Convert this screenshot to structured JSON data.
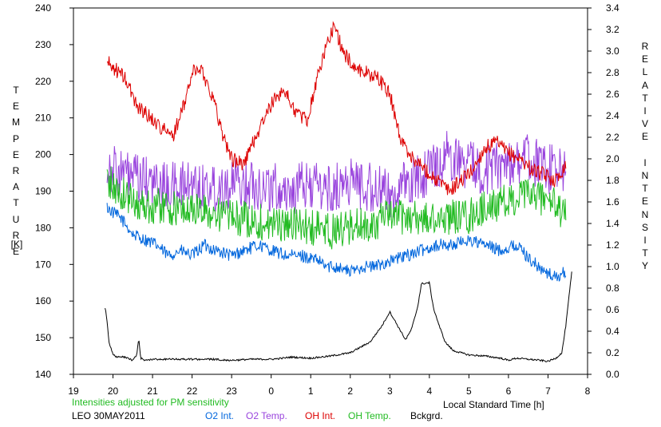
{
  "chart_data": {
    "type": "line",
    "left_axis": {
      "title_letters": [
        "T",
        "E",
        "M",
        "P",
        "E",
        "R",
        "A",
        "T",
        "U",
        "R",
        "E"
      ],
      "unit": "[K]",
      "range": [
        140,
        240
      ],
      "ticks": [
        "140",
        "150",
        "160",
        "170",
        "180",
        "190",
        "200",
        "210",
        "220",
        "230",
        "240"
      ]
    },
    "right_axis": {
      "title_letters": [
        "R",
        "E",
        "L",
        "A",
        "T",
        "I",
        "V",
        "E",
        " ",
        "I",
        "N",
        "T",
        "E",
        "N",
        "S",
        "I",
        "T",
        "Y"
      ],
      "range": [
        0.0,
        3.4
      ],
      "ticks": [
        "0.0",
        "0.2",
        "0.4",
        "0.6",
        "0.8",
        "1.0",
        "1.2",
        "1.4",
        "1.6",
        "1.8",
        "2.0",
        "2.2",
        "2.4",
        "2.6",
        "2.8",
        "3.0",
        "3.2",
        "3.4"
      ]
    },
    "x_axis": {
      "label": "Local Standard Time [h]",
      "range": [
        19,
        32
      ],
      "tick_labels": [
        "19",
        "20",
        "21",
        "22",
        "23",
        "0",
        "1",
        "2",
        "3",
        "4",
        "5",
        "6",
        "7",
        "8"
      ]
    },
    "note": "Intensities adjusted for PM sensitivity",
    "station": "LEO 30MAY2011",
    "series": [
      {
        "name": "O2 Int.",
        "axis": "right",
        "color": "#0066dd",
        "x": [
          19.85,
          20.0,
          20.2,
          20.5,
          20.8,
          21.1,
          21.4,
          21.7,
          22.0,
          22.3,
          22.6,
          23.0,
          23.3,
          23.7,
          24.0,
          24.4,
          24.8,
          25.2,
          25.4,
          25.7,
          26.0,
          26.3,
          26.6,
          27.0,
          27.4,
          27.8,
          28.2,
          28.6,
          29.0,
          29.4,
          29.8,
          30.2,
          30.6,
          30.9,
          31.2,
          31.45
        ],
        "values": [
          1.55,
          1.5,
          1.45,
          1.3,
          1.25,
          1.2,
          1.1,
          1.15,
          1.1,
          1.2,
          1.15,
          1.1,
          1.15,
          1.2,
          1.15,
          1.1,
          1.1,
          1.05,
          1.0,
          1.0,
          0.95,
          1.0,
          1.0,
          1.05,
          1.1,
          1.15,
          1.2,
          1.2,
          1.25,
          1.2,
          1.15,
          1.2,
          1.05,
          0.95,
          0.9,
          0.95
        ],
        "noise": 0.06
      },
      {
        "name": "O2 Temp.",
        "axis": "left",
        "color": "#9944dd",
        "x": [
          19.85,
          20.2,
          20.6,
          21.0,
          21.5,
          22.0,
          22.5,
          23.0,
          23.5,
          24.0,
          24.5,
          25.0,
          25.5,
          26.0,
          26.5,
          27.0,
          27.5,
          28.0,
          28.5,
          29.0,
          29.5,
          30.0,
          30.5,
          31.0,
          31.45
        ],
        "values": [
          197,
          195,
          193,
          192,
          191,
          192,
          191,
          192,
          192,
          191,
          190,
          192,
          190,
          193,
          191,
          189,
          192,
          196,
          200,
          197,
          196,
          198,
          199,
          196,
          195
        ],
        "noise": 7
      },
      {
        "name": "OH Int.",
        "axis": "right",
        "color": "#dd0000",
        "x": [
          19.85,
          20.0,
          20.3,
          20.6,
          20.9,
          21.2,
          21.5,
          21.8,
          22.0,
          22.2,
          22.5,
          22.8,
          23.0,
          23.3,
          23.6,
          24.0,
          24.3,
          24.6,
          24.9,
          25.2,
          25.4,
          25.6,
          25.8,
          26.1,
          26.4,
          26.7,
          27.0,
          27.3,
          27.6,
          27.9,
          28.2,
          28.5,
          28.8,
          29.1,
          29.4,
          29.7,
          30.0,
          30.3,
          30.6,
          30.9,
          31.2,
          31.45
        ],
        "values": [
          2.9,
          2.85,
          2.75,
          2.5,
          2.4,
          2.3,
          2.2,
          2.5,
          2.8,
          2.85,
          2.6,
          2.2,
          2.0,
          1.95,
          2.2,
          2.5,
          2.65,
          2.45,
          2.35,
          2.8,
          3.05,
          3.25,
          3.0,
          2.85,
          2.8,
          2.75,
          2.6,
          2.15,
          2.0,
          1.9,
          1.8,
          1.7,
          1.8,
          1.9,
          2.1,
          2.15,
          2.05,
          2.0,
          1.9,
          1.85,
          1.8,
          1.95
        ],
        "noise": 0.07
      },
      {
        "name": "OH Temp.",
        "axis": "left",
        "color": "#22bb22",
        "x": [
          19.85,
          20.1,
          20.4,
          20.8,
          21.2,
          21.6,
          22.0,
          22.5,
          23.0,
          23.5,
          24.0,
          24.5,
          25.0,
          25.5,
          26.0,
          26.5,
          27.0,
          27.5,
          28.0,
          28.5,
          29.0,
          29.5,
          30.0,
          30.5,
          31.0,
          31.45
        ],
        "values": [
          193,
          190,
          188,
          186,
          186,
          185,
          185,
          184,
          183,
          182,
          181,
          181,
          180,
          179,
          180,
          181,
          183,
          183,
          182,
          183,
          183,
          186,
          187,
          189,
          188,
          183
        ],
        "noise": 5
      },
      {
        "name": "Bckgrd.",
        "axis": "right",
        "color": "#000000",
        "x": [
          19.8,
          19.85,
          19.9,
          20.0,
          20.1,
          20.3,
          20.5,
          20.6,
          20.65,
          20.7,
          20.8,
          21.0,
          21.5,
          22.0,
          22.5,
          23.0,
          23.5,
          24.0,
          24.3,
          24.5,
          25.0,
          25.5,
          26.0,
          26.5,
          26.8,
          27.0,
          27.2,
          27.4,
          27.55,
          27.7,
          27.8,
          28.0,
          28.1,
          28.25,
          28.4,
          28.6,
          28.8,
          29.0,
          29.4,
          29.8,
          30.0,
          30.2,
          30.5,
          30.8,
          31.0,
          31.2,
          31.35,
          31.45,
          31.6
        ],
        "values": [
          0.62,
          0.5,
          0.3,
          0.18,
          0.16,
          0.16,
          0.13,
          0.18,
          0.33,
          0.15,
          0.13,
          0.14,
          0.14,
          0.14,
          0.14,
          0.13,
          0.14,
          0.14,
          0.15,
          0.16,
          0.15,
          0.17,
          0.2,
          0.3,
          0.45,
          0.58,
          0.45,
          0.32,
          0.42,
          0.62,
          0.84,
          0.85,
          0.62,
          0.45,
          0.3,
          0.22,
          0.2,
          0.18,
          0.17,
          0.15,
          0.13,
          0.15,
          0.14,
          0.13,
          0.12,
          0.15,
          0.2,
          0.45,
          0.95
        ],
        "noise": 0.008
      }
    ]
  }
}
